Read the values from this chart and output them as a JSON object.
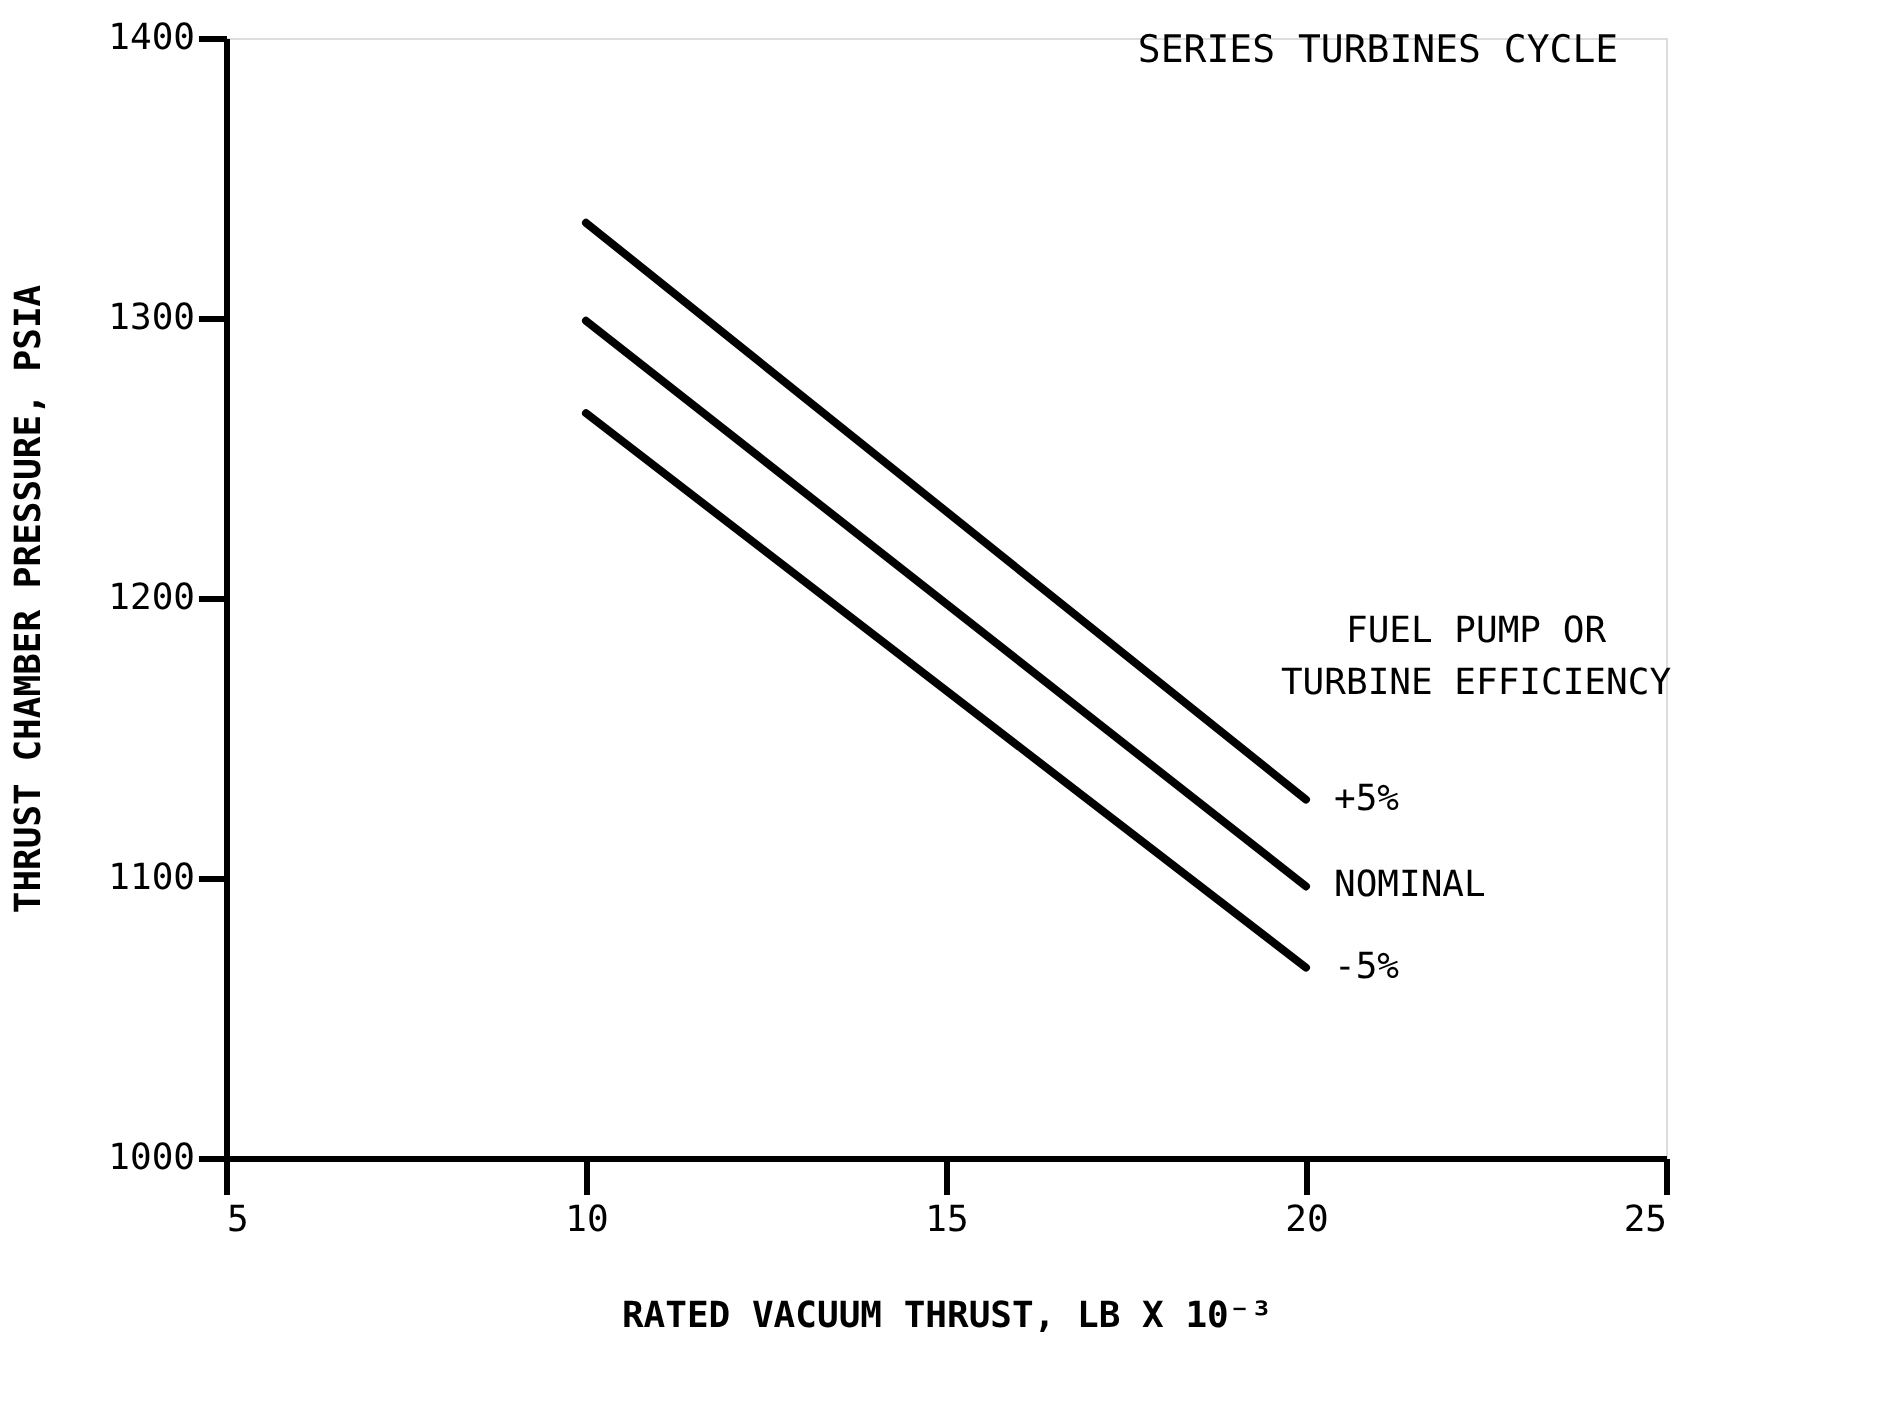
{
  "chart_data": {
    "type": "line",
    "title": "SERIES TURBINES CYCLE",
    "xlabel": "RATED VACUUM THRUST, LB X 10⁻³",
    "ylabel": "THRUST CHAMBER PRESSURE, PSIA",
    "legend_title": "FUEL PUMP OR\nTURBINE EFFICIENCY",
    "x": [
      10,
      20
    ],
    "series": [
      {
        "name": "+5%",
        "color": "#000000",
        "values": [
          1334,
          1128
        ]
      },
      {
        "name": "NOMINAL",
        "color": "#000000",
        "values": [
          1299,
          1097
        ]
      },
      {
        "name": "-5%",
        "color": "#000000",
        "values": [
          1266,
          1068
        ]
      }
    ],
    "xlim": [
      5,
      25
    ],
    "xticks": [
      5,
      10,
      15,
      20,
      25
    ],
    "ylim": [
      1000,
      1400
    ],
    "yticks": [
      1000,
      1100,
      1200,
      1300,
      1400
    ],
    "grid": false,
    "legend": "right",
    "marker": "none",
    "line_style": "solid"
  }
}
